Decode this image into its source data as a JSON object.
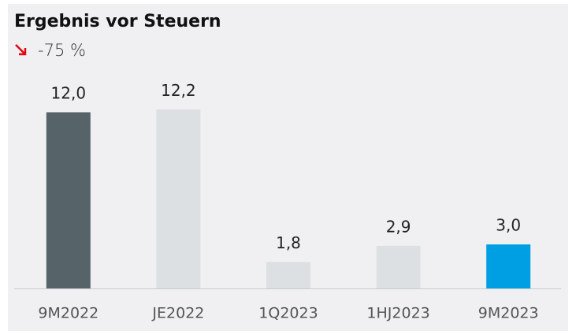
{
  "chart_data": {
    "type": "bar",
    "title": "Ergebnis vor Steuern",
    "subtitle": "-75 %",
    "categories": [
      "9M2022",
      "JE2022",
      "1Q2023",
      "1HJ2023",
      "9M2023"
    ],
    "values": [
      12.0,
      12.2,
      1.8,
      2.9,
      3.0
    ],
    "value_labels": [
      "12,0",
      "12,2",
      "1,8",
      "2,9",
      "3,0"
    ],
    "colors": [
      "#566369",
      "#dde0e3",
      "#dde0e3",
      "#dde0e3",
      "#009fe3"
    ],
    "ylim": [
      0,
      12
    ]
  }
}
